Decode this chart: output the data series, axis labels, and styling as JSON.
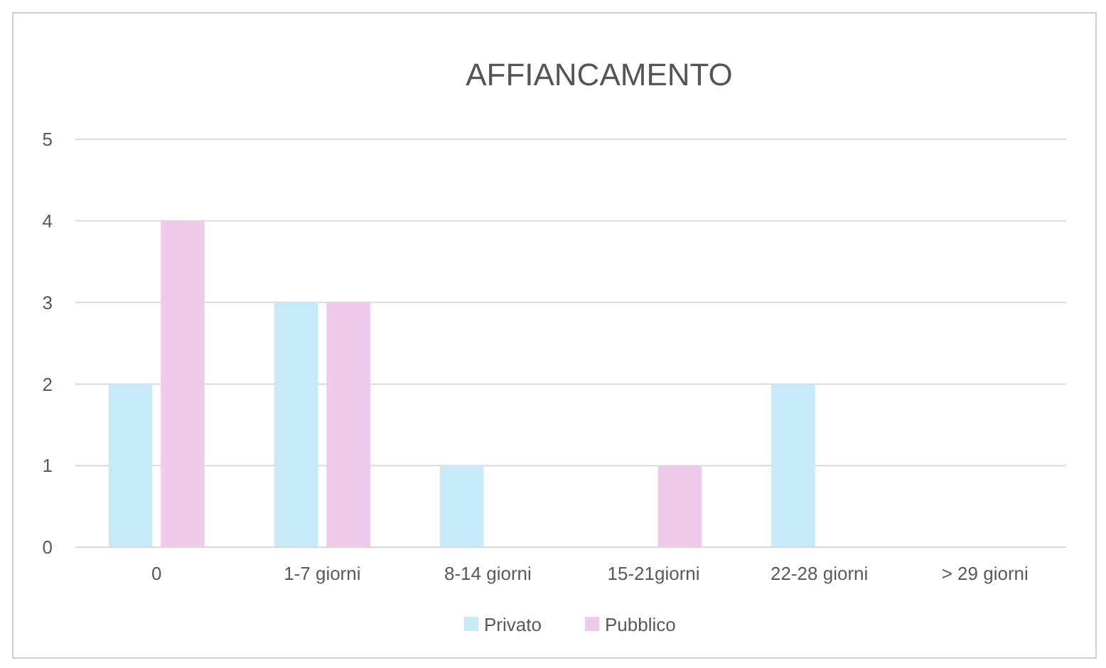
{
  "chart_data": {
    "type": "bar",
    "title": "AFFIANCAMENTO",
    "categories": [
      "0",
      "1-7 giorni",
      "8-14 giorni",
      "15-21giorni",
      "22-28 giorni",
      "> 29 giorni"
    ],
    "series": [
      {
        "name": "Privato",
        "color": "#c6eaf8",
        "values": [
          2,
          3,
          1,
          0,
          2,
          0
        ]
      },
      {
        "name": "Pubblico",
        "color": "#f0caea",
        "values": [
          4,
          3,
          0,
          1,
          0,
          0
        ]
      }
    ],
    "ylim": [
      0,
      5
    ],
    "yticks": [
      0,
      1,
      2,
      3,
      4,
      5
    ],
    "grid": "y",
    "legend": "bottom"
  }
}
